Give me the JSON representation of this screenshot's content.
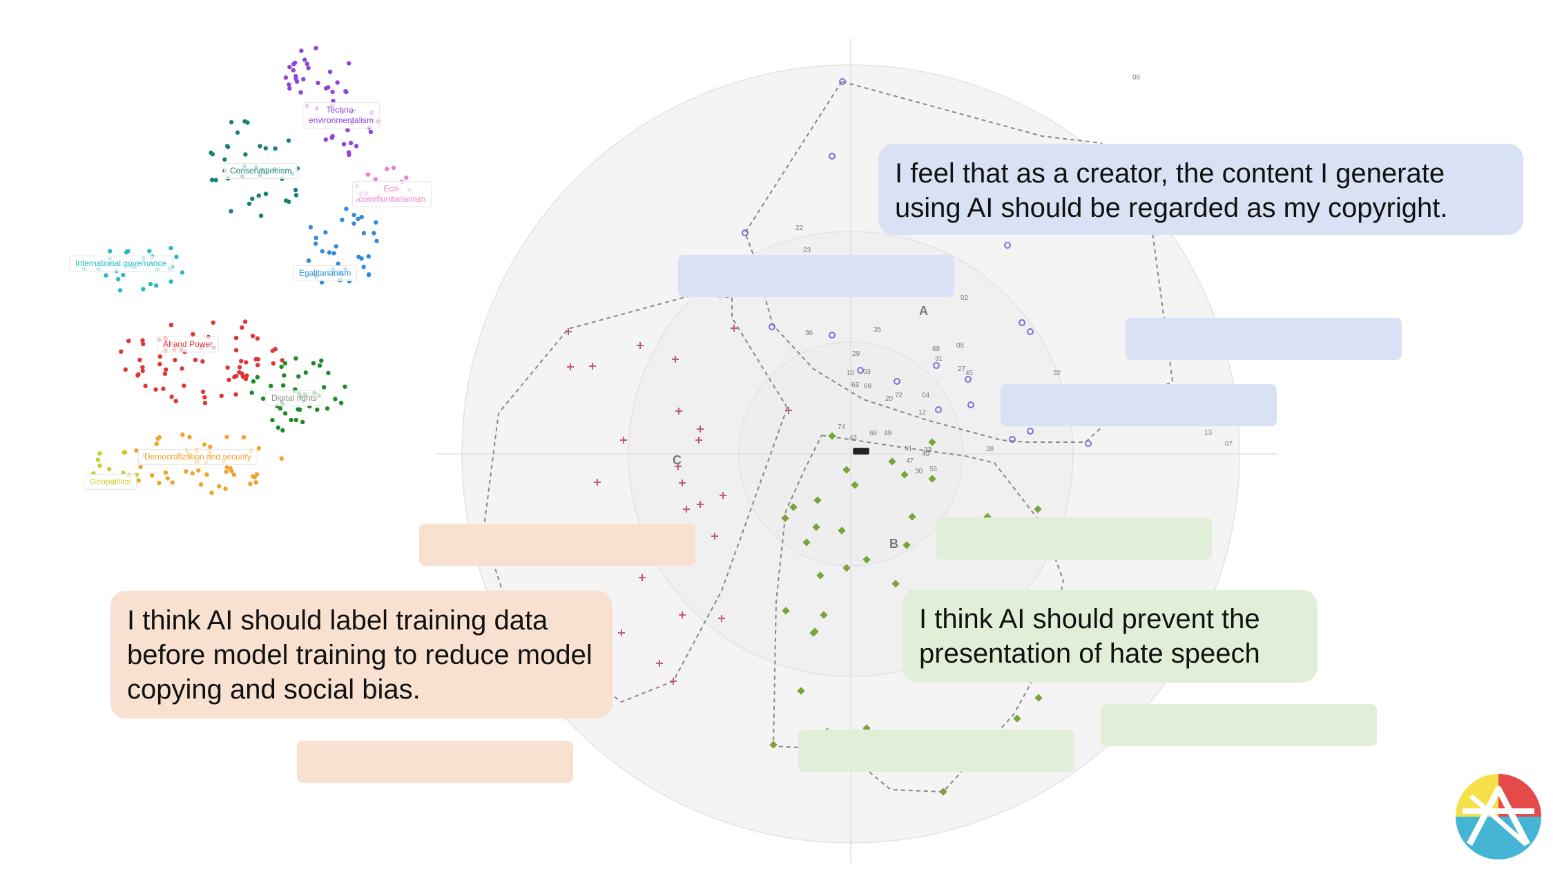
{
  "cluster_map": {
    "labels": [
      {
        "text": "Techno-\nenvironmentalism",
        "color": "#8e44d6"
      },
      {
        "text": "Conservationism",
        "color": "#17807a"
      },
      {
        "text": "Eco-\ncommunitarianism",
        "color": "#ee7fcf"
      },
      {
        "text": "International governance",
        "color": "#29b8cc"
      },
      {
        "text": "Egalitarianism",
        "color": "#2f8bdc"
      },
      {
        "text": "AI and Power",
        "color": "#e03535"
      },
      {
        "text": "Digital rights",
        "color": "#888888"
      },
      {
        "text": "Democratization and security",
        "color": "#f0a22e"
      },
      {
        "text": "Geopolitics",
        "color": "#c9cc2e"
      }
    ],
    "colors": {
      "purple": "#8e44d6",
      "teal": "#17807a",
      "pink": "#ee7fcf",
      "cyan": "#29b8cc",
      "blue": "#2f8bdc",
      "red": "#e03535",
      "green": "#1c8a2a",
      "orange": "#f0a22e",
      "yellow": "#c9cc2e"
    }
  },
  "radar": {
    "cluster_labels": [
      "A",
      "B",
      "C"
    ],
    "number_labels": [
      "08",
      "22",
      "23",
      "02",
      "36",
      "35",
      "05",
      "68",
      "29",
      "31",
      "27",
      "10",
      "03",
      "45",
      "32",
      "63",
      "69",
      "72",
      "04",
      "20",
      "12",
      "74",
      "66",
      "42",
      "49",
      "51",
      "33",
      "28",
      "40",
      "47",
      "30",
      "55",
      "13",
      "07"
    ],
    "colors": {
      "group_a": "#7b6fd6",
      "group_b": "#7aa33a",
      "group_c": "#c0587a",
      "rings": "#e2e2e2",
      "fill": "#f4f4f4"
    }
  },
  "statements": {
    "blue": "I feel that as a creator, the content I generate using AI should be regarded as my copyright.",
    "peach": "I think AI should label training data before model training to reduce model copying and social bias.",
    "green": "I think AI should prevent the presentation of hate speech"
  },
  "colors": {
    "blue_bubble": "#d9e2f4",
    "peach_bubble": "#f9e1d2",
    "green_bubble": "#e2efd8",
    "logo_red": "#e44a4a",
    "logo_yellow": "#f6e04a",
    "logo_cyan": "#45b5d6"
  }
}
